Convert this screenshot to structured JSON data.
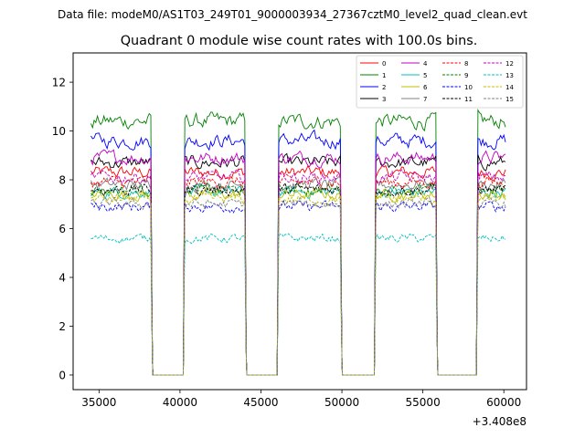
{
  "chart_data": {
    "type": "line",
    "suptitle": "Data file: modeM0/AS1T03_249T01_9000003934_27367cztM0_level2_quad_clean.evt",
    "title": "Quadrant 0 module wise count rates with 100.0s bins.",
    "xlabel": "",
    "ylabel": "",
    "x_offset_label": "+3.408e8",
    "xlim": [
      33400,
      61400
    ],
    "ylim": [
      -0.6,
      13.2
    ],
    "xticks": [
      35000,
      40000,
      45000,
      50000,
      55000,
      60000
    ],
    "xtick_labels": [
      "35000",
      "40000",
      "45000",
      "50000",
      "55000",
      "60000"
    ],
    "yticks": [
      0,
      2,
      4,
      6,
      8,
      10,
      12
    ],
    "ytick_labels": [
      "0",
      "2",
      "4",
      "6",
      "8",
      "10",
      "12"
    ],
    "legend_position": "upper right",
    "segments": [
      [
        34500,
        38200
      ],
      [
        40300,
        44000
      ],
      [
        46100,
        49900
      ],
      [
        52100,
        55800
      ],
      [
        58400,
        60100
      ]
    ],
    "gaps": [
      [
        38200,
        40300
      ],
      [
        44000,
        46100
      ],
      [
        49900,
        52100
      ],
      [
        55800,
        58400
      ]
    ],
    "series": [
      {
        "name": "0",
        "color": "#ff0000",
        "dash": "solid",
        "level": 8.3
      },
      {
        "name": "1",
        "color": "#008000",
        "dash": "solid",
        "level": 10.4
      },
      {
        "name": "2",
        "color": "#0000ff",
        "dash": "solid",
        "level": 9.6
      },
      {
        "name": "3",
        "color": "#000000",
        "dash": "solid",
        "level": 8.7
      },
      {
        "name": "4",
        "color": "#bf00bf",
        "dash": "solid",
        "level": 8.9
      },
      {
        "name": "5",
        "color": "#00bfbf",
        "dash": "solid",
        "level": 7.5
      },
      {
        "name": "6",
        "color": "#bfbf00",
        "dash": "solid",
        "level": 7.4
      },
      {
        "name": "7",
        "color": "#808080",
        "dash": "solid",
        "level": 7.8
      },
      {
        "name": "8",
        "color": "#ff0000",
        "dash": "dashed",
        "level": 7.9
      },
      {
        "name": "9",
        "color": "#008000",
        "dash": "dashed",
        "level": 7.6
      },
      {
        "name": "10",
        "color": "#0000ff",
        "dash": "dashed",
        "level": 6.9
      },
      {
        "name": "11",
        "color": "#000000",
        "dash": "dashed",
        "level": 7.6
      },
      {
        "name": "12",
        "color": "#bf00bf",
        "dash": "dashed",
        "level": 8.1
      },
      {
        "name": "13",
        "color": "#00bfbf",
        "dash": "dashed",
        "level": 5.6
      },
      {
        "name": "14",
        "color": "#bfbf00",
        "dash": "dashed",
        "level": 7.2
      },
      {
        "name": "15",
        "color": "#808080",
        "dash": "dashed",
        "level": 7.0
      }
    ]
  }
}
